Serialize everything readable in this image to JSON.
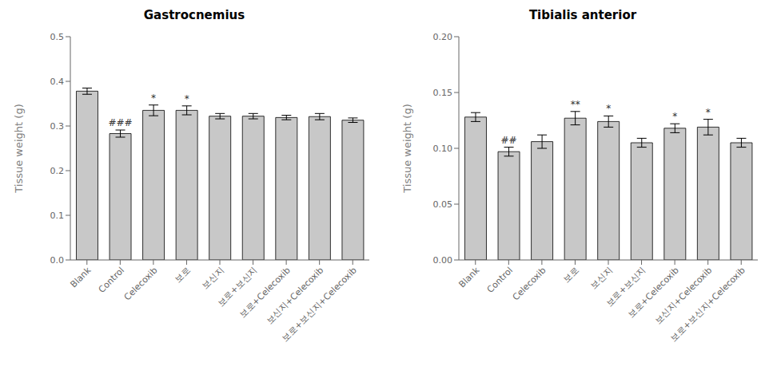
{
  "chart_data": [
    {
      "type": "bar",
      "title": "Gastrocnemius",
      "ylabel": "Tissue weight (g)",
      "categories": [
        "Blank",
        "Control",
        "Celecoxib",
        "보로",
        "보신지",
        "보로+보신지",
        "보로+Celecoxib",
        "보신지+Celecoxib",
        "보로+보신지+Celecoxib"
      ],
      "values": [
        0.378,
        0.283,
        0.335,
        0.335,
        0.322,
        0.322,
        0.319,
        0.321,
        0.313
      ],
      "errors": [
        0.007,
        0.008,
        0.012,
        0.01,
        0.006,
        0.006,
        0.005,
        0.007,
        0.005
      ],
      "color": "#c8c8c8",
      "ylim": [
        0,
        0.5
      ],
      "yticks": [
        {
          "value": 0,
          "label": "0.0"
        },
        0.1,
        0.2,
        0.3,
        0.4,
        0.5
      ],
      "annotations": [
        {
          "category": "Control",
          "text": "###"
        },
        {
          "category": "Celecoxib",
          "text": "*"
        },
        {
          "category": "보로",
          "text": "*"
        }
      ]
    },
    {
      "type": "bar",
      "title": "Tibialis anterior",
      "ylabel": "Tissue weight (g)",
      "categories": [
        "Blank",
        "Control",
        "Celecoxib",
        "보로",
        "보신지",
        "보로+보신지",
        "보로+Celecoxib",
        "보신지+Celecoxib",
        "보로+보신지+Celecoxib"
      ],
      "values": [
        0.128,
        0.097,
        0.106,
        0.127,
        0.124,
        0.105,
        0.118,
        0.119,
        0.105
      ],
      "errors": [
        0.004,
        0.004,
        0.006,
        0.006,
        0.005,
        0.004,
        0.004,
        0.007,
        0.004
      ],
      "color": "#c8c8c8",
      "ylim": [
        0,
        0.2
      ],
      "yticks": [
        {
          "value": 0,
          "label": "0.00"
        },
        0.05,
        {
          "value": 0.1,
          "label": "0.10"
        },
        0.15,
        {
          "value": 0.2,
          "label": "0.20"
        }
      ],
      "annotations": [
        {
          "category": "Control",
          "text": "##"
        },
        {
          "category": "보로",
          "text": "**"
        },
        {
          "category": "보신지",
          "text": "*"
        },
        {
          "category": "보로+Celecoxib",
          "text": "*"
        },
        {
          "category": "보신지+Celecoxib",
          "text": "*"
        }
      ]
    }
  ]
}
